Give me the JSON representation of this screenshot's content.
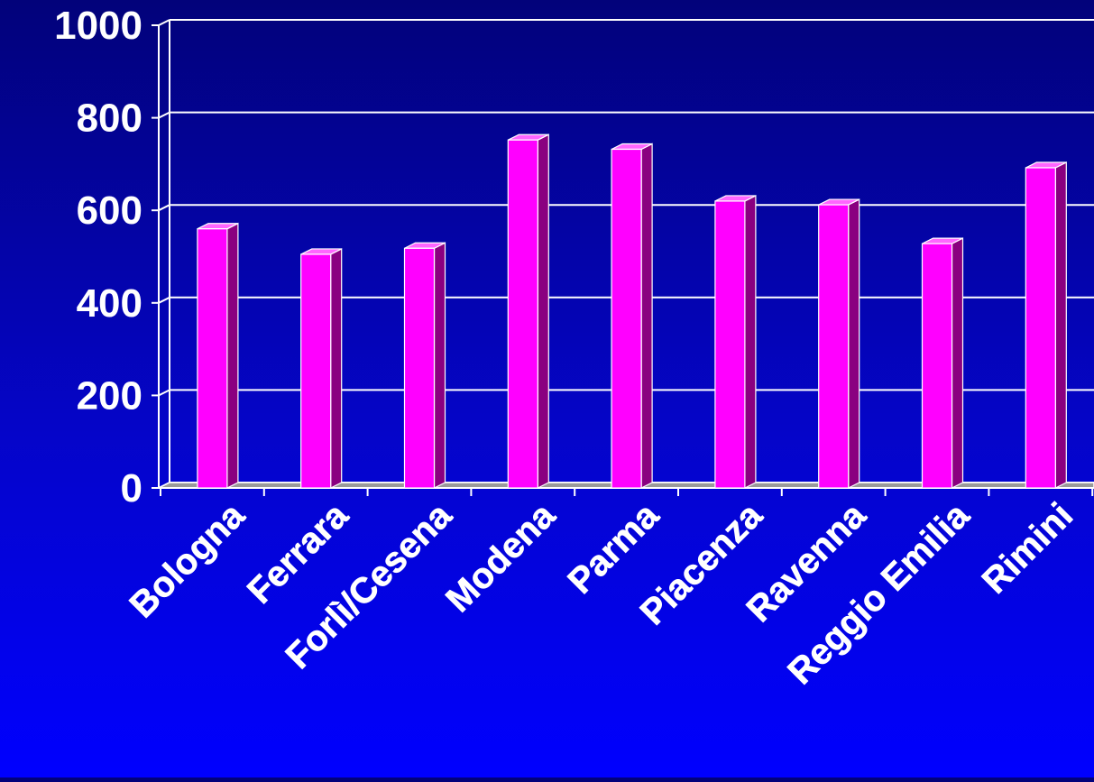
{
  "chart_data": {
    "type": "bar",
    "title": "",
    "xlabel": "",
    "ylabel": "",
    "categories": [
      "Bologna",
      "Ferrara",
      "Forlì/Cesena",
      "Modena",
      "Parma",
      "Piacenza",
      "Ravenna",
      "Reggio Emilia",
      "Rimini"
    ],
    "series": [
      {
        "values": [
          560,
          505,
          518,
          752,
          732,
          620,
          612,
          528,
          692
        ]
      }
    ],
    "ylim": [
      0,
      1000
    ],
    "yticks": [
      0,
      200,
      400,
      600,
      800,
      1000
    ],
    "ytick_labels": [
      "0",
      "200",
      "400",
      "600",
      "800",
      "1000"
    ],
    "grid": true,
    "legend": "none",
    "colors": {
      "background_top": "#02027a",
      "background_bottom": "#0000ff",
      "bar_front": "#ff00ff",
      "bar_side": "#8a0080",
      "bar_top": "#ff66ff",
      "axis": "#ffffff",
      "text": "#ffffff"
    }
  }
}
